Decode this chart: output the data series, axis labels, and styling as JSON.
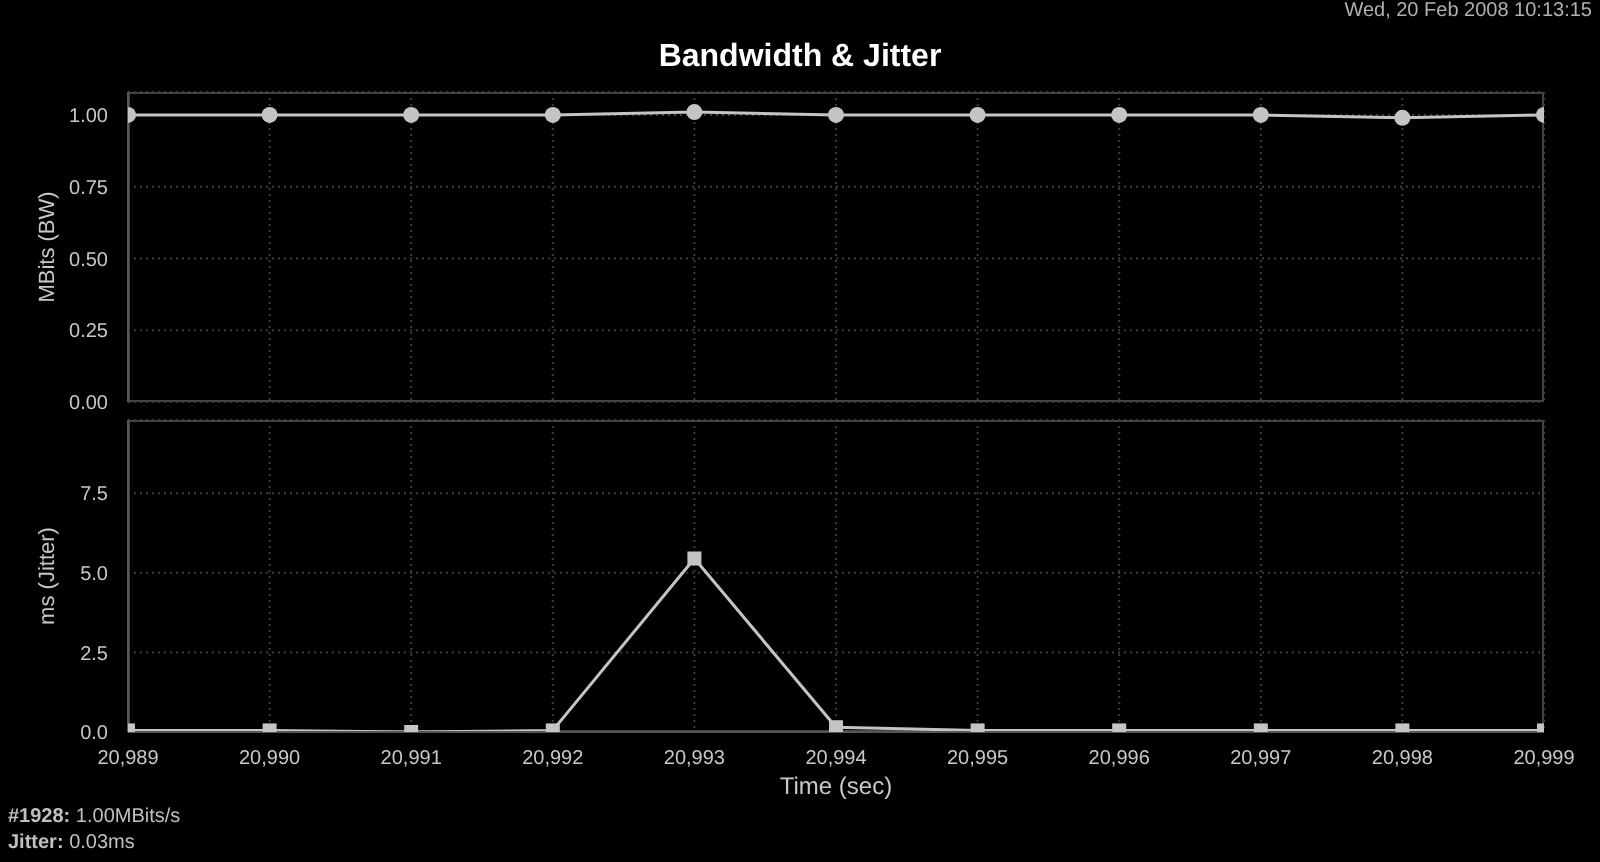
{
  "chart_data": [
    {
      "type": "line",
      "title": "Bandwidth & Jitter",
      "annotations": [
        "Wed, 20 Feb 2008 10:13:15"
      ],
      "ylabel": "MBits (BW)",
      "x": [
        20989,
        20990,
        20991,
        20992,
        20993,
        20994,
        20995,
        20996,
        20997,
        20998,
        20999
      ],
      "series": [
        {
          "color": "#c4c4c4",
          "values": [
            1,
            1,
            1,
            1,
            1.01,
            1,
            1,
            1,
            1,
            0.99,
            1
          ]
        }
      ],
      "xlim": [
        20989,
        20999
      ],
      "xticks": [
        20989,
        20990,
        20991,
        20992,
        20993,
        20994,
        20995,
        20996,
        20997,
        20998,
        20999
      ],
      "ylim": [
        0,
        1.08
      ],
      "yticks": [
        {
          "value": 0,
          "label": "0.00"
        },
        0.25,
        {
          "value": 0.5,
          "label": "0.50"
        },
        0.75,
        {
          "value": 1,
          "label": "1.00"
        }
      ],
      "grid": true,
      "marker": "circle",
      "tick_labels": "y"
    },
    {
      "type": "line",
      "xlabel": "Time (sec)",
      "ylabel": "ms (Jitter)",
      "annotations": [
        "#1928: 1.00MBits/s",
        "Jitter: 0.03ms"
      ],
      "x": [
        20989,
        20990,
        20991,
        20992,
        20993,
        20994,
        20995,
        20996,
        20997,
        20998,
        20999
      ],
      "series": [
        {
          "color": "#c4c4c4",
          "values": [
            0.05,
            0.05,
            0,
            0.05,
            5.45,
            0.15,
            0.05,
            0.05,
            0.05,
            0.05,
            0.05
          ]
        }
      ],
      "xlim": [
        20989,
        20999
      ],
      "xticks": [
        {
          "value": 20989,
          "label": "20,989"
        },
        {
          "value": 20990,
          "label": "20,990"
        },
        {
          "value": 20991,
          "label": "20,991"
        },
        {
          "value": 20992,
          "label": "20,992"
        },
        {
          "value": 20993,
          "label": "20,993"
        },
        {
          "value": 20994,
          "label": "20,994"
        },
        {
          "value": 20995,
          "label": "20,995"
        },
        {
          "value": 20996,
          "label": "20,996"
        },
        {
          "value": 20997,
          "label": "20,997"
        },
        {
          "value": 20998,
          "label": "20,998"
        },
        {
          "value": 20999,
          "label": "20,999"
        }
      ],
      "ylim": [
        0,
        9.8
      ],
      "yticks": [
        {
          "value": 0,
          "label": "0.0"
        },
        2.5,
        {
          "value": 5,
          "label": "5.0"
        },
        7.5
      ],
      "grid": true,
      "marker": "square"
    }
  ]
}
